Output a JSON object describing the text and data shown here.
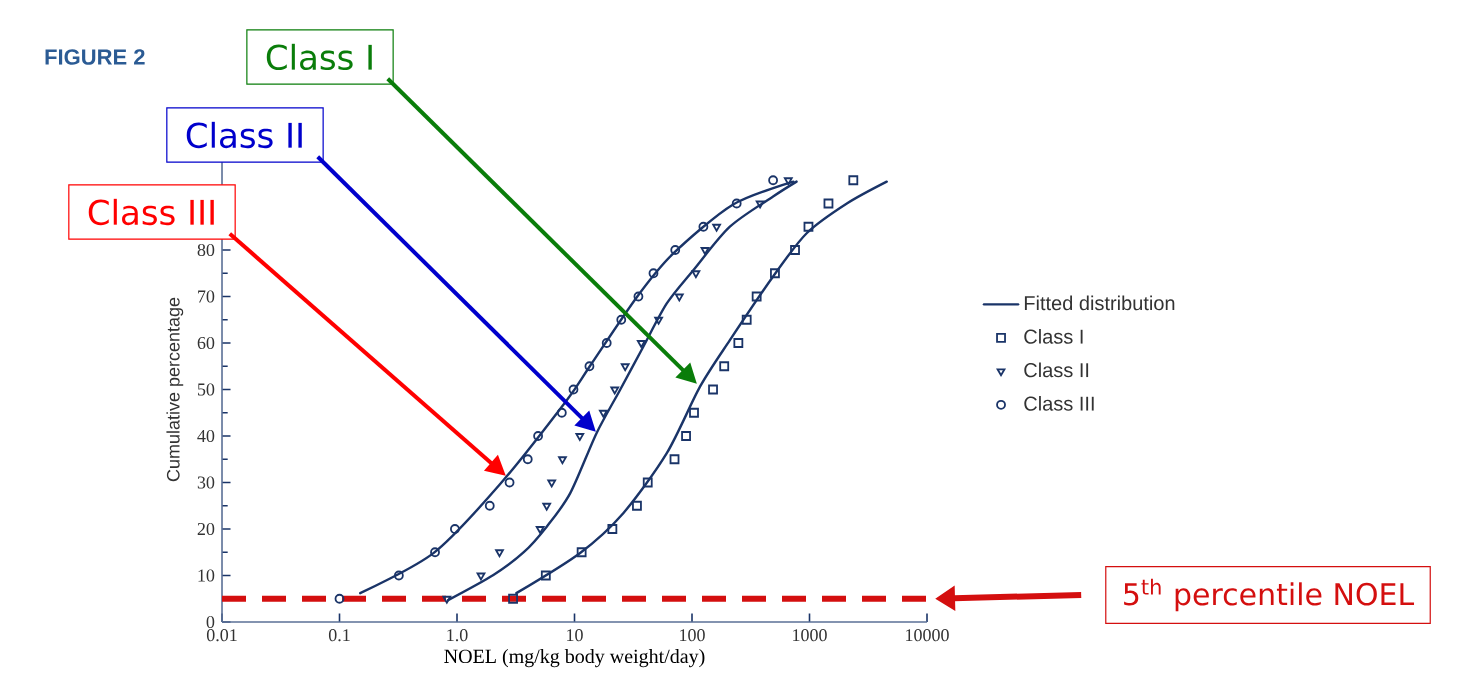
{
  "chart_data": {
    "type": "line",
    "title": "FIGURE 2",
    "xlabel": "NOEL (mg/kg body weight/day)",
    "ylabel": "Cumulative percentage",
    "log": "x",
    "xlim": [
      0.01,
      10000
    ],
    "ylim": [
      0,
      100
    ],
    "xticks": [
      0.01,
      0.1,
      {
        "value": 1,
        "label": "1.0"
      },
      10,
      100,
      1000,
      10000
    ],
    "yticks": [
      0,
      10,
      20,
      30,
      40,
      50,
      60,
      70,
      80
    ],
    "legend": "right",
    "series": [
      {
        "name": "Fitted distribution",
        "marker": "none",
        "color": "#1a3468",
        "x": [
          3.2,
          11.1,
          26,
          61,
          117,
          210,
          490,
          946,
          2080,
          4540
        ],
        "values": [
          6.2,
          14.8,
          23.4,
          36.3,
          50.6,
          60.6,
          74.3,
          83.6,
          90,
          94.7
        ]
      },
      {
        "name": "Class I",
        "type": "scatter",
        "marker": "square",
        "color": "#1a3468",
        "x": [
          3.0,
          5.7,
          11.5,
          21,
          34,
          42,
          71,
          89,
          104,
          151,
          188,
          248,
          292,
          355,
          508,
          753,
          980,
          1450,
          2360
        ],
        "values": [
          5,
          10,
          15,
          20,
          25,
          30,
          35,
          40,
          45,
          50,
          55,
          60,
          65,
          70,
          75,
          80,
          85,
          90,
          95
        ]
      },
      {
        "name": "Class II",
        "type": "scatter",
        "marker": "triangle",
        "color": "#1a3468",
        "x": [
          0.82,
          1.6,
          2.3,
          5.1,
          5.8,
          6.4,
          7.9,
          11.1,
          17.6,
          22,
          27,
          37,
          52,
          78,
          108,
          129,
          162,
          380,
          660
        ],
        "values": [
          5,
          10,
          15,
          20,
          25,
          30,
          35,
          40,
          45,
          50,
          55,
          60,
          65,
          70,
          75,
          80,
          85,
          90,
          95
        ]
      },
      {
        "name": "Class III",
        "type": "scatter",
        "marker": "circle",
        "color": "#1a3468",
        "x": [
          0.1,
          0.32,
          0.65,
          0.96,
          1.9,
          2.8,
          4.0,
          4.9,
          7.8,
          9.8,
          13.4,
          18.8,
          25,
          35,
          47,
          72,
          125,
          240,
          490
        ],
        "values": [
          5,
          10,
          15,
          20,
          25,
          30,
          35,
          40,
          45,
          50,
          55,
          60,
          65,
          70,
          75,
          80,
          85,
          90,
          95
        ]
      },
      {
        "marker": "none",
        "color": "#1a3468",
        "x": [
          0.84,
          2.04,
          3.7,
          5.8,
          9.2,
          15.4,
          24.4,
          38.5,
          61,
          103,
          210,
          490,
          776
        ],
        "values": [
          4.7,
          10.1,
          15,
          20.5,
          27.7,
          40.6,
          49.9,
          59.2,
          68.5,
          75.7,
          85,
          91.5,
          94.7
        ]
      },
      {
        "marker": "none",
        "color": "#1a3468",
        "x": [
          0.15,
          0.63,
          2.3,
          8.6,
          13.5,
          34,
          69,
          224,
          730
        ],
        "values": [
          6.2,
          14.8,
          29.5,
          47.7,
          55,
          69.9,
          79.2,
          89.8,
          94.7
        ]
      }
    ],
    "ref_lines": [
      {
        "axis": "y",
        "value": 5,
        "label": "5$^{th}$ percentile NOEL",
        "color": "#d40f0f",
        "line_style": "dashed"
      }
    ],
    "annotations": [
      "Class I",
      "Class II",
      "Class III"
    ]
  }
}
